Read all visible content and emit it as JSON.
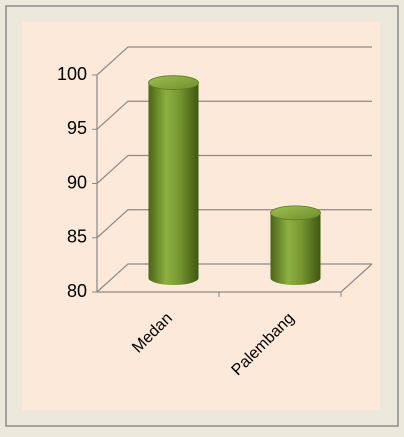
{
  "chart_data": {
    "type": "bar",
    "categories": [
      "Medan",
      "Palembang"
    ],
    "values": [
      98,
      86
    ],
    "color": "#77933c",
    "ylim": [
      80,
      100
    ],
    "yticks": [
      80,
      85,
      90,
      95,
      100
    ],
    "grid": true
  }
}
